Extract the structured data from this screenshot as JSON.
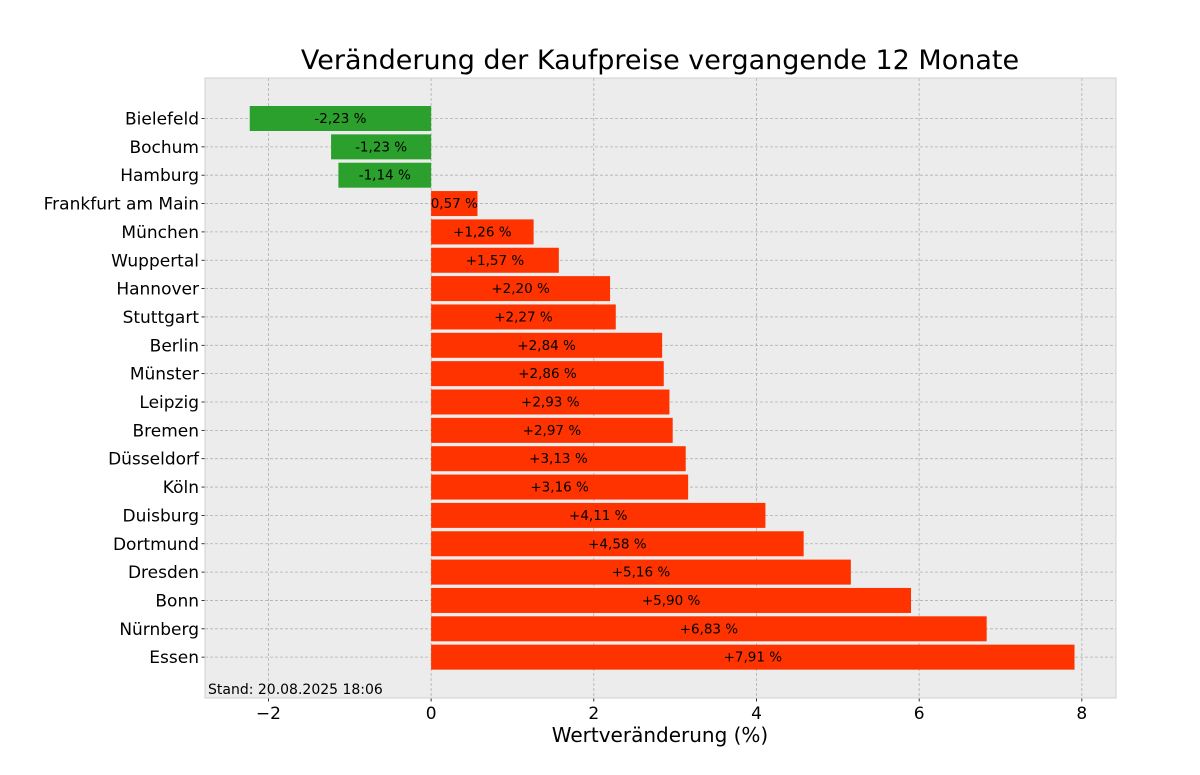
{
  "chart_data": {
    "type": "bar",
    "orientation": "horizontal",
    "title": "Veränderung der Kaufpreise vergangende 12 Monate",
    "xlabel": "Wertveränderung (%)",
    "ylabel": "",
    "xlim": [
      -2.78,
      8.42
    ],
    "xticks": [
      -2,
      0,
      2,
      4,
      6,
      8
    ],
    "xtick_labels": [
      "−2",
      "0",
      "2",
      "4",
      "6",
      "8"
    ],
    "grid": true,
    "categories": [
      "Bielefeld",
      "Bochum",
      "Hamburg",
      "Frankfurt am Main",
      "München",
      "Wuppertal",
      "Hannover",
      "Stuttgart",
      "Berlin",
      "Münster",
      "Leipzig",
      "Bremen",
      "Düsseldorf",
      "Köln",
      "Duisburg",
      "Dortmund",
      "Dresden",
      "Bonn",
      "Nürnberg",
      "Essen"
    ],
    "values": [
      -2.23,
      -1.23,
      -1.14,
      0.57,
      1.26,
      1.57,
      2.2,
      2.27,
      2.84,
      2.86,
      2.93,
      2.97,
      3.13,
      3.16,
      4.11,
      4.58,
      5.16,
      5.9,
      6.83,
      7.91
    ],
    "data_labels": [
      "-2,23 %",
      "-1,23 %",
      "-1,14 %",
      "0,57 %",
      "+1,26 %",
      "+1,57 %",
      "+2,20 %",
      "+2,27 %",
      "+2,84 %",
      "+2,86 %",
      "+2,93 %",
      "+2,97 %",
      "+3,13 %",
      "+3,16 %",
      "+4,11 %",
      "+4,58 %",
      "+5,16 %",
      "+5,90 %",
      "+6,83 %",
      "+7,91 %"
    ],
    "colors": {
      "negative": "#2ca02c",
      "positive": "#ff3300",
      "background": "#ececec",
      "grid": "#b0b0b0"
    },
    "footer": "Stand: 20.08.2025 18:06"
  }
}
